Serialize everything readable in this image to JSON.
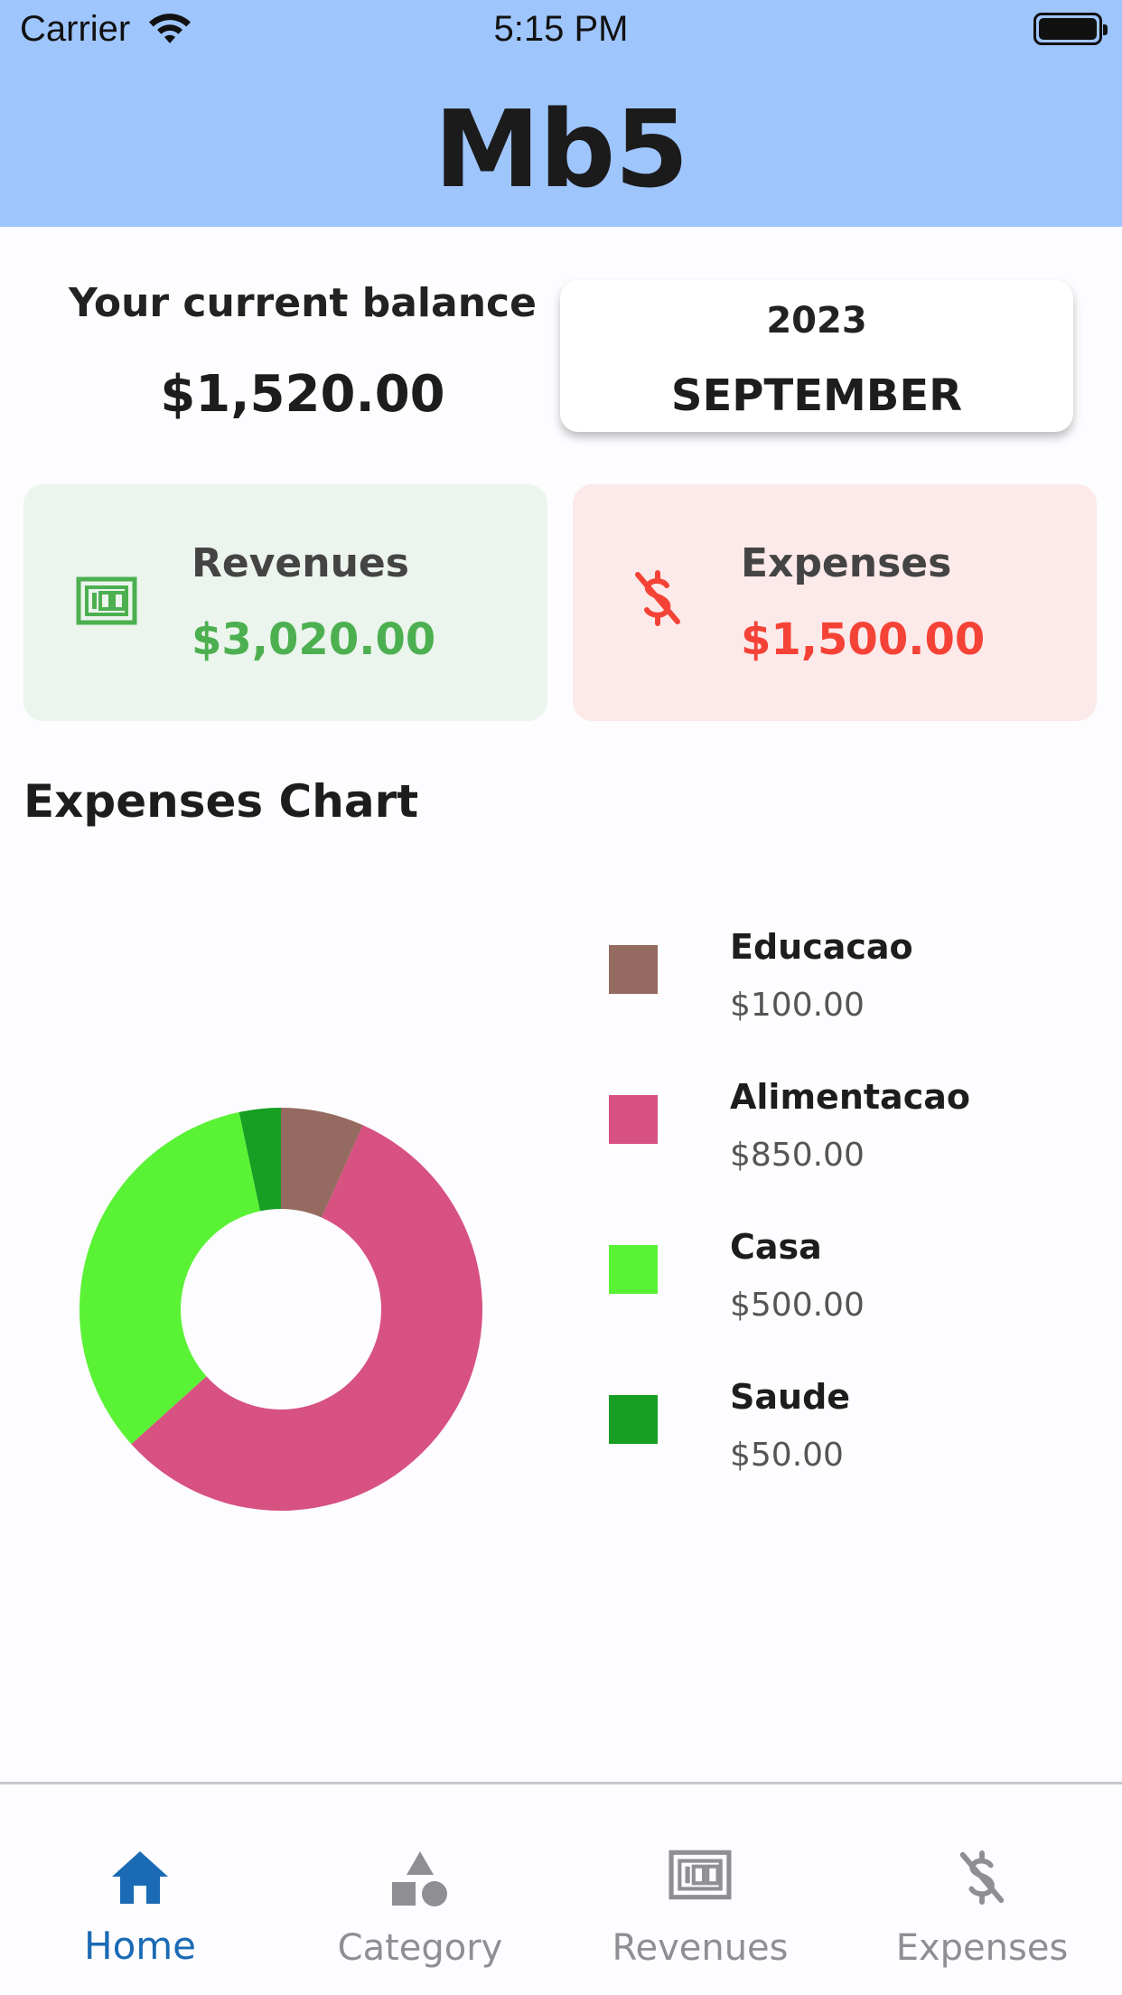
{
  "status_bar": {
    "carrier": "Carrier",
    "time": "5:15 PM"
  },
  "header": {
    "title": "Mb5",
    "background": "#9fc5fd"
  },
  "balance": {
    "label": "Your current balance",
    "value": "$1,520.00"
  },
  "period": {
    "year": "2023",
    "month": "SEPTEMBER"
  },
  "revenues_card": {
    "label": "Revenues",
    "amount": "$3,020.00",
    "icon": "money-bill-icon",
    "color": "#4caf50"
  },
  "expenses_card": {
    "label": "Expenses",
    "amount": "$1,500.00",
    "icon": "dollar-off-icon",
    "color": "#f44336"
  },
  "chart_section": {
    "title": "Expenses Chart"
  },
  "chart_data": {
    "type": "pie",
    "donut": true,
    "categories": [
      "Educacao",
      "Alimentacao",
      "Casa",
      "Saude"
    ],
    "values": [
      100,
      850,
      500,
      50
    ],
    "value_labels": [
      "$100.00",
      "$850.00",
      "$500.00",
      "$50.00"
    ],
    "colors": [
      "#956a60",
      "#d75181",
      "#5af235",
      "#169f23"
    ],
    "legend": "right"
  },
  "tabbar": {
    "active": "Home",
    "active_color": "#1a6ab5",
    "tabs": [
      {
        "label": "Home",
        "icon": "home-icon"
      },
      {
        "label": "Category",
        "icon": "shapes-icon"
      },
      {
        "label": "Revenues",
        "icon": "money-bill-icon"
      },
      {
        "label": "Expenses",
        "icon": "dollar-off-icon"
      }
    ]
  }
}
